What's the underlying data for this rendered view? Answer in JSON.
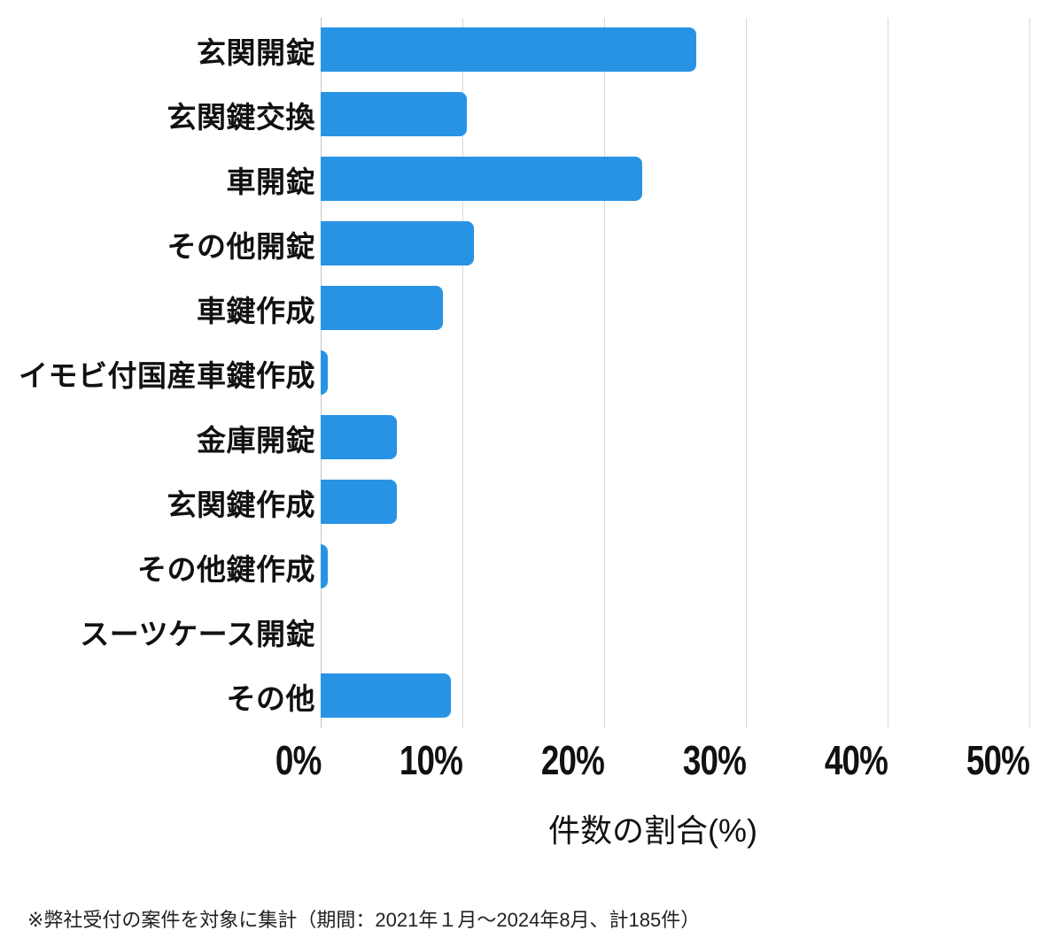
{
  "chart_data": {
    "type": "bar",
    "orientation": "horizontal",
    "title": "",
    "categories": [
      "玄関開錠",
      "玄関鍵交換",
      "車開錠",
      "その他開錠",
      "車鍵作成",
      "イモビ付国産車鍵作成",
      "金庫開錠",
      "玄関鍵作成",
      "その他鍵作成",
      "スーツケース開錠",
      "その他"
    ],
    "values": [
      26.5,
      10.3,
      22.7,
      10.8,
      8.6,
      0.5,
      5.4,
      5.4,
      0.5,
      0,
      9.2
    ],
    "unit": "%",
    "xlabel": "件数の割合(%)",
    "ylabel": "",
    "xlim": [
      0,
      50
    ],
    "xtick_labels": [
      "0%",
      "10%",
      "20%",
      "30%",
      "40%",
      "50%"
    ],
    "xtick_values": [
      0,
      10,
      20,
      30,
      40,
      50
    ],
    "grid": "vertical-only",
    "legend": "none",
    "bar_color": "#2893E5"
  },
  "footnote": "※弊社受付の案件を対象に集計（期間：2021年１月～2024年8月、計185件）",
  "colors": {
    "bar": "#2893E5",
    "gridline": "#d9d9d9",
    "axis_line": "#c6c6c6",
    "text": "#111111",
    "background": "#ffffff"
  }
}
